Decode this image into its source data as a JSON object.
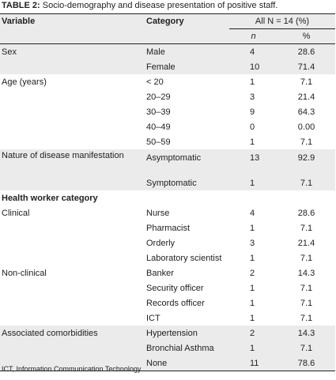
{
  "caption": {
    "label": "TABLE 2:",
    "text": " Socio-demography and disease presentation of positive staff."
  },
  "header": {
    "variable": "Variable",
    "category": "Category",
    "all_label": "All N = 14 (%)",
    "n": "n",
    "pct": "%"
  },
  "rows": [
    {
      "variable": "Sex",
      "category": "Male",
      "n": "4",
      "pct": "28.6"
    },
    {
      "variable": "",
      "category": "Female",
      "n": "10",
      "pct": "71.4"
    },
    {
      "variable": "Age (years)",
      "category": "< 20",
      "n": "1",
      "pct": "7.1"
    },
    {
      "variable": "",
      "category": "20–29",
      "n": "3",
      "pct": "21.4"
    },
    {
      "variable": "",
      "category": "30–39",
      "n": "9",
      "pct": "64.3"
    },
    {
      "variable": "",
      "category": "40–49",
      "n": "0",
      "pct": "0.00"
    },
    {
      "variable": "",
      "category": "50–59",
      "n": "1",
      "pct": "7.1"
    },
    {
      "variable": "Nature of disease manifestation",
      "category": "Asymptomatic",
      "n": "13",
      "pct": "92.9"
    },
    {
      "variable": "",
      "category": "Symptomatic",
      "n": "1",
      "pct": "7.1"
    },
    {
      "variable": "Health worker category",
      "category": "",
      "n": "",
      "pct": ""
    },
    {
      "variable": "Clinical",
      "category": "Nurse",
      "n": "4",
      "pct": "28.6"
    },
    {
      "variable": "",
      "category": "Pharmacist",
      "n": "1",
      "pct": "7.1"
    },
    {
      "variable": "",
      "category": "Orderly",
      "n": "3",
      "pct": "21.4"
    },
    {
      "variable": "",
      "category": "Laboratory scientist",
      "n": "1",
      "pct": "7.1"
    },
    {
      "variable": "Non-clinical",
      "category": "Banker",
      "n": "2",
      "pct": "14.3"
    },
    {
      "variable": "",
      "category": "Security officer",
      "n": "1",
      "pct": "7.1"
    },
    {
      "variable": "",
      "category": "Records officer",
      "n": "1",
      "pct": "7.1"
    },
    {
      "variable": "",
      "category": "ICT",
      "n": "1",
      "pct": "7.1"
    },
    {
      "variable": "Associated comorbidities",
      "category": "Hypertension",
      "n": "2",
      "pct": "14.3"
    },
    {
      "variable": "",
      "category": "Bronchial Asthma",
      "n": "1",
      "pct": "7.1"
    },
    {
      "variable": "",
      "category": "None",
      "n": "11",
      "pct": "78.6"
    }
  ],
  "footnote": "ICT, Information Communication Technology."
}
